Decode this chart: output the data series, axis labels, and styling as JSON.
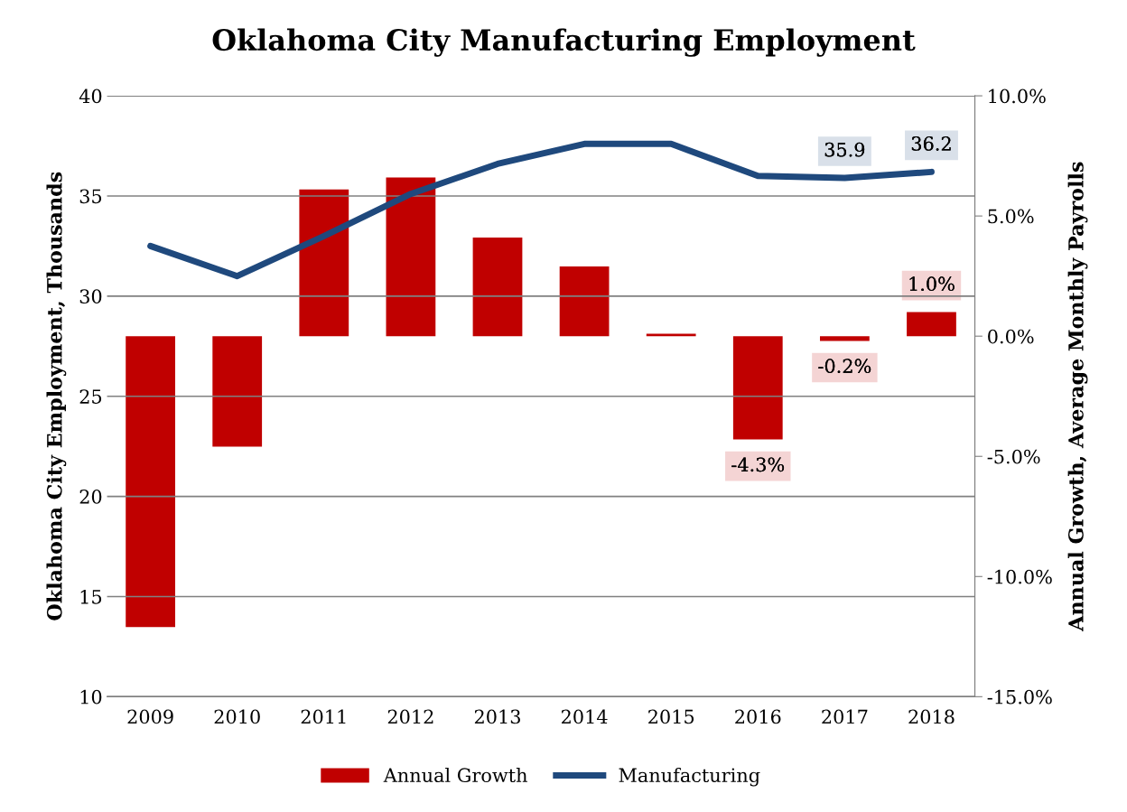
{
  "chart_data": {
    "type": "bar",
    "title": "Oklahoma City Manufacturing Employment",
    "ylabel": "Oklahoma City Employment, Thousands",
    "y2label": "Annual Growth, Average Monthly Payrolls",
    "categories": [
      "2009",
      "2010",
      "2011",
      "2012",
      "2013",
      "2014",
      "2015",
      "2016",
      "2017",
      "2018"
    ],
    "series": [
      {
        "name": "Annual Growth",
        "axis": "y2",
        "color": "#c00000",
        "values": [
          -12.1,
          -4.6,
          6.1,
          6.6,
          4.1,
          2.9,
          0.1,
          -4.3,
          -0.2,
          1.0
        ],
        "value_labels": [
          null,
          null,
          null,
          null,
          null,
          null,
          null,
          "-4.3%",
          "-0.2%",
          "1.0%"
        ]
      },
      {
        "name": "Manufacturing",
        "type": "line",
        "axis": "y",
        "color": "#1f497d",
        "values": [
          32.5,
          31.0,
          33.0,
          35.1,
          36.6,
          37.6,
          37.6,
          36.0,
          35.9,
          36.2
        ],
        "value_labels": [
          null,
          null,
          null,
          null,
          null,
          null,
          null,
          null,
          "35.9",
          "36.2"
        ]
      }
    ],
    "ylim": [
      10,
      40
    ],
    "yticks": [
      10,
      15,
      20,
      25,
      30,
      35,
      40
    ],
    "y2lim": [
      -15,
      10
    ],
    "y2ticks": [
      {
        "value": -15,
        "label": "-15.0%"
      },
      {
        "value": -10,
        "label": "-10.0%"
      },
      {
        "value": -5,
        "label": "-5.0%"
      },
      {
        "value": 0,
        "label": "0.0%"
      },
      {
        "value": 5,
        "label": "5.0%"
      },
      {
        "value": 10,
        "label": "10.0%"
      }
    ],
    "grid": "y",
    "legend": "bottom",
    "marker": "none",
    "line_style": "solid"
  }
}
